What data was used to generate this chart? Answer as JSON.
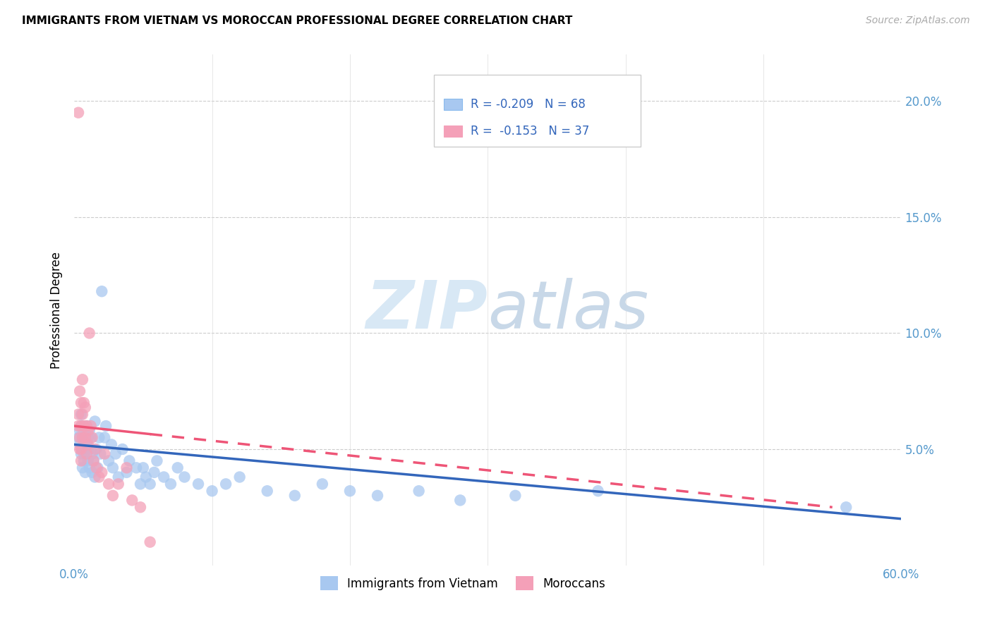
{
  "title": "IMMIGRANTS FROM VIETNAM VS MOROCCAN PROFESSIONAL DEGREE CORRELATION CHART",
  "source": "Source: ZipAtlas.com",
  "ylabel": "Professional Degree",
  "xlim": [
    0.0,
    0.6
  ],
  "ylim": [
    0.0,
    0.22
  ],
  "xticks": [
    0.0,
    0.1,
    0.2,
    0.3,
    0.4,
    0.5,
    0.6
  ],
  "xticklabels": [
    "0.0%",
    "",
    "",
    "",
    "",
    "",
    "60.0%"
  ],
  "ytick_right_labels": [
    "5.0%",
    "10.0%",
    "15.0%",
    "20.0%"
  ],
  "ytick_right_vals": [
    0.05,
    0.1,
    0.15,
    0.2
  ],
  "legend_r1": "-0.209",
  "legend_n1": "68",
  "legend_r2": "-0.153",
  "legend_n2": "37",
  "vietnam_color": "#A8C8F0",
  "morocco_color": "#F4A0B8",
  "trendline_vietnam_color": "#3366BB",
  "trendline_morocco_color": "#EE5577",
  "watermark_color": "#D8E8F5",
  "tick_color": "#5599CC",
  "legend_text_color": "#3366BB",
  "vietnam_x": [
    0.003,
    0.004,
    0.004,
    0.005,
    0.005,
    0.005,
    0.006,
    0.006,
    0.006,
    0.007,
    0.007,
    0.007,
    0.008,
    0.008,
    0.009,
    0.009,
    0.01,
    0.01,
    0.01,
    0.011,
    0.011,
    0.012,
    0.012,
    0.013,
    0.013,
    0.014,
    0.015,
    0.015,
    0.016,
    0.017,
    0.018,
    0.019,
    0.02,
    0.022,
    0.023,
    0.025,
    0.027,
    0.028,
    0.03,
    0.032,
    0.035,
    0.038,
    0.04,
    0.045,
    0.048,
    0.05,
    0.052,
    0.055,
    0.058,
    0.06,
    0.065,
    0.07,
    0.075,
    0.08,
    0.09,
    0.1,
    0.11,
    0.12,
    0.14,
    0.16,
    0.18,
    0.2,
    0.22,
    0.25,
    0.28,
    0.32,
    0.38,
    0.56
  ],
  "vietnam_y": [
    0.055,
    0.058,
    0.052,
    0.048,
    0.06,
    0.065,
    0.055,
    0.05,
    0.042,
    0.048,
    0.053,
    0.045,
    0.055,
    0.04,
    0.052,
    0.06,
    0.05,
    0.055,
    0.045,
    0.058,
    0.042,
    0.05,
    0.055,
    0.048,
    0.04,
    0.045,
    0.062,
    0.038,
    0.05,
    0.042,
    0.055,
    0.048,
    0.118,
    0.055,
    0.06,
    0.045,
    0.052,
    0.042,
    0.048,
    0.038,
    0.05,
    0.04,
    0.045,
    0.042,
    0.035,
    0.042,
    0.038,
    0.035,
    0.04,
    0.045,
    0.038,
    0.035,
    0.042,
    0.038,
    0.035,
    0.032,
    0.035,
    0.038,
    0.032,
    0.03,
    0.035,
    0.032,
    0.03,
    0.032,
    0.028,
    0.03,
    0.032,
    0.025
  ],
  "morocco_x": [
    0.003,
    0.003,
    0.003,
    0.004,
    0.004,
    0.004,
    0.005,
    0.005,
    0.005,
    0.005,
    0.006,
    0.006,
    0.006,
    0.007,
    0.007,
    0.008,
    0.008,
    0.009,
    0.009,
    0.01,
    0.01,
    0.011,
    0.012,
    0.013,
    0.014,
    0.015,
    0.016,
    0.018,
    0.02,
    0.022,
    0.025,
    0.028,
    0.032,
    0.038,
    0.042,
    0.048,
    0.055
  ],
  "morocco_y": [
    0.195,
    0.065,
    0.06,
    0.075,
    0.055,
    0.05,
    0.07,
    0.06,
    0.05,
    0.045,
    0.08,
    0.065,
    0.055,
    0.07,
    0.06,
    0.068,
    0.055,
    0.06,
    0.048,
    0.058,
    0.052,
    0.1,
    0.06,
    0.055,
    0.045,
    0.05,
    0.042,
    0.038,
    0.04,
    0.048,
    0.035,
    0.03,
    0.035,
    0.042,
    0.028,
    0.025,
    0.01
  ],
  "trendline_viet_start_y": 0.052,
  "trendline_viet_end_y": 0.02,
  "trendline_mor_start_y": 0.06,
  "trendline_mor_end_y": 0.025
}
